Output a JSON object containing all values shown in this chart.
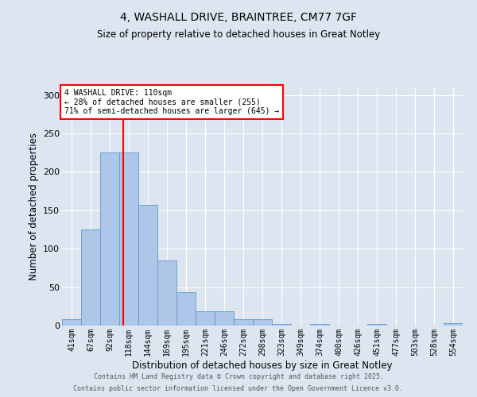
{
  "title1": "4, WASHALL DRIVE, BRAINTREE, CM77 7GF",
  "title2": "Size of property relative to detached houses in Great Notley",
  "xlabel": "Distribution of detached houses by size in Great Notley",
  "ylabel": "Number of detached properties",
  "bar_labels": [
    "41sqm",
    "67sqm",
    "92sqm",
    "118sqm",
    "144sqm",
    "169sqm",
    "195sqm",
    "221sqm",
    "246sqm",
    "272sqm",
    "298sqm",
    "323sqm",
    "349sqm",
    "374sqm",
    "400sqm",
    "426sqm",
    "451sqm",
    "477sqm",
    "503sqm",
    "528sqm",
    "554sqm"
  ],
  "bar_values": [
    8,
    125,
    225,
    225,
    157,
    85,
    43,
    19,
    19,
    8,
    8,
    2,
    0,
    2,
    0,
    0,
    2,
    0,
    0,
    0,
    3
  ],
  "bar_color": "#aec6e8",
  "bar_edge_color": "#5b9bd5",
  "vline_x": 2.72,
  "vline_color": "red",
  "annotation_title": "4 WASHALL DRIVE: 110sqm",
  "annotation_line1": "← 28% of detached houses are smaller (255)",
  "annotation_line2": "71% of semi-detached houses are larger (645) →",
  "annotation_box_color": "white",
  "annotation_box_edge": "red",
  "ylim": [
    0,
    310
  ],
  "yticks": [
    0,
    50,
    100,
    150,
    200,
    250,
    300
  ],
  "footer1": "Contains HM Land Registry data © Crown copyright and database right 2025.",
  "footer2": "Contains public sector information licensed under the Open Government Licence v3.0.",
  "bg_color": "#dde6f0"
}
